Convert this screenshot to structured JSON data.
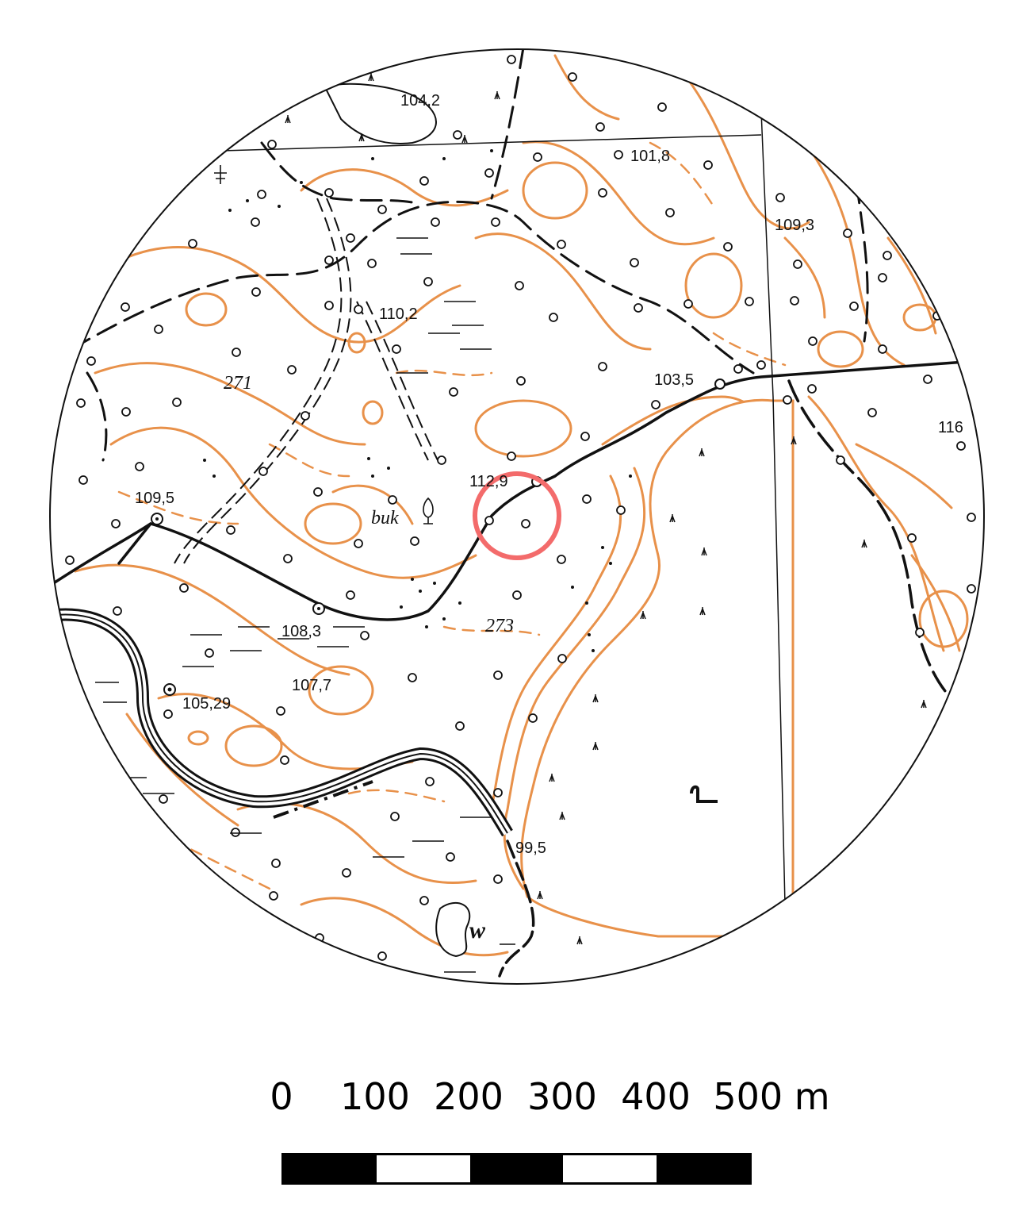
{
  "map": {
    "colors": {
      "contour": "#e8914a",
      "ink": "#111111",
      "marker": "#f36b6b",
      "background": "#ffffff"
    },
    "labels": {
      "elev_104_2": "104,2",
      "elev_101_8": "101,8",
      "elev_109_3": "109,3",
      "elev_110_2": "110,2",
      "elev_103_5": "103,5",
      "elev_116": "116",
      "elev_112_9": "112,9",
      "elev_109_5": "109,5",
      "elev_108_3": "108,3",
      "elev_107_7": "107,7",
      "elev_105_29": "105,29",
      "elev_99_5": "99,5",
      "num_271": "271",
      "num_273": "273",
      "text_buk": "buk",
      "text_w": "w"
    },
    "icons": [
      "tree-icon",
      "marsh-icon",
      "spot-height-icon",
      "target-circle-icon"
    ]
  },
  "scale": {
    "labels": [
      "0",
      "100",
      "200",
      "300",
      "400",
      "500 m"
    ],
    "segments": [
      "black",
      "white",
      "black",
      "white",
      "black"
    ]
  }
}
